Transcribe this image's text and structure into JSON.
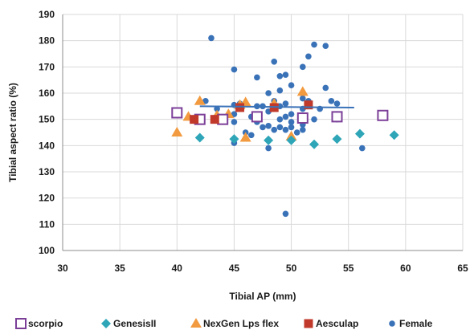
{
  "chart_data": {
    "type": "scatter",
    "xlabel": "Tibial AP (mm)",
    "ylabel": "Tibial aspect ratio (%)",
    "xlim": [
      30,
      65
    ],
    "ylim": [
      100,
      190
    ],
    "xticks": [
      30,
      35,
      40,
      45,
      50,
      55,
      60,
      65
    ],
    "yticks": [
      100,
      110,
      120,
      130,
      140,
      150,
      160,
      170,
      180,
      190
    ],
    "grid": "both",
    "legend_position": "bottom",
    "series": [
      {
        "name": "scorpio",
        "marker": "open-square",
        "color": "#7b3f98",
        "points": [
          [
            40,
            152.5
          ],
          [
            42,
            150
          ],
          [
            44,
            150
          ],
          [
            47,
            151
          ],
          [
            51,
            150.5
          ],
          [
            54,
            151
          ],
          [
            58,
            151.5
          ]
        ]
      },
      {
        "name": "GenesisII",
        "marker": "diamond",
        "color": "#2ea6b8",
        "points": [
          [
            42,
            143
          ],
          [
            45,
            142.5
          ],
          [
            48,
            142
          ],
          [
            50,
            142
          ],
          [
            52,
            140.5
          ],
          [
            54,
            142.5
          ],
          [
            56,
            144.5
          ],
          [
            59,
            144
          ]
        ]
      },
      {
        "name": "NexGen Lps flex",
        "marker": "triangle",
        "color": "#f29a3f",
        "points": [
          [
            40,
            145
          ],
          [
            41,
            151
          ],
          [
            42,
            157
          ],
          [
            43.5,
            151.5
          ],
          [
            44.5,
            152
          ],
          [
            45.5,
            155.5
          ],
          [
            46,
            156.5
          ],
          [
            46,
            143
          ],
          [
            48.5,
            156
          ],
          [
            50,
            143.5
          ],
          [
            51,
            160.5
          ]
        ]
      },
      {
        "name": "Aesculap",
        "marker": "square",
        "color": "#c0392b",
        "points": [
          [
            41.5,
            150
          ],
          [
            43.3,
            150
          ],
          [
            45.5,
            154.5
          ],
          [
            48.5,
            154.5
          ],
          [
            51.5,
            155.5
          ]
        ]
      },
      {
        "name": "Female",
        "marker": "circle",
        "color": "#3a72b8",
        "trendline": [
          [
            42,
            155
          ],
          [
            55.5,
            154.5
          ]
        ],
        "points": [
          [
            43,
            181
          ],
          [
            42.5,
            157
          ],
          [
            43.5,
            154
          ],
          [
            45,
            169
          ],
          [
            45,
            155.5
          ],
          [
            45,
            152
          ],
          [
            45,
            149
          ],
          [
            45,
            141
          ],
          [
            45.5,
            156
          ],
          [
            46,
            145
          ],
          [
            46.5,
            144
          ],
          [
            46.5,
            151
          ],
          [
            47,
            166
          ],
          [
            47,
            155
          ],
          [
            47,
            149
          ],
          [
            47.5,
            147
          ],
          [
            47.5,
            155
          ],
          [
            48,
            160
          ],
          [
            48,
            153
          ],
          [
            48,
            147.5
          ],
          [
            48,
            139
          ],
          [
            48.5,
            157
          ],
          [
            48.5,
            172
          ],
          [
            48.5,
            146
          ],
          [
            49,
            166.5
          ],
          [
            49,
            161
          ],
          [
            49,
            155
          ],
          [
            49,
            150
          ],
          [
            49,
            147
          ],
          [
            49.5,
            167
          ],
          [
            49.5,
            156
          ],
          [
            49.5,
            151
          ],
          [
            49.5,
            146
          ],
          [
            49.5,
            114
          ],
          [
            50,
            163
          ],
          [
            50,
            152
          ],
          [
            50,
            149
          ],
          [
            50,
            147
          ],
          [
            50.5,
            145
          ],
          [
            51,
            170
          ],
          [
            51,
            158
          ],
          [
            51,
            154
          ],
          [
            51,
            148
          ],
          [
            51,
            146
          ],
          [
            51.5,
            174
          ],
          [
            51.5,
            157
          ],
          [
            52,
            178.5
          ],
          [
            52,
            150
          ],
          [
            52.5,
            154
          ],
          [
            53,
            178
          ],
          [
            53,
            162
          ],
          [
            53.5,
            157
          ],
          [
            54,
            156
          ],
          [
            54,
            152
          ],
          [
            54,
            150
          ],
          [
            56.2,
            139
          ]
        ]
      }
    ]
  }
}
